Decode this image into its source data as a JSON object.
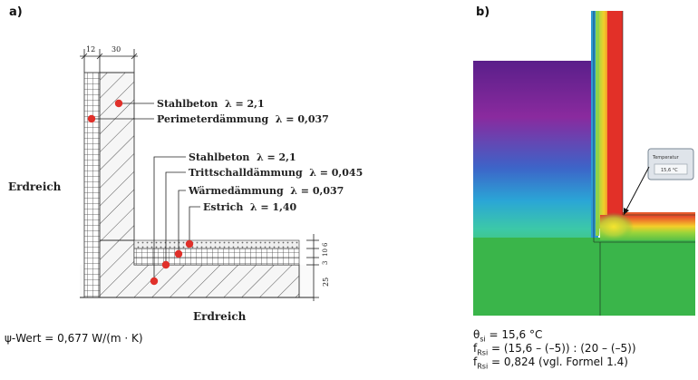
{
  "panel_a": {
    "label": "a)",
    "dim_wall_insulation": "12",
    "dim_wall_concrete": "30",
    "dim_floor_screed": "6",
    "dim_floor_insulation": "10",
    "dim_floor_impact": "3",
    "dim_slab": "25",
    "soil_label_left": "Erdreich",
    "soil_label_bottom": "Erdreich",
    "wall_labels": [
      {
        "name": "Stahlbeton",
        "lambda": "λ = 2,1"
      },
      {
        "name": "Perimeterdämmung",
        "lambda": "λ = 0,037"
      }
    ],
    "floor_labels": [
      {
        "name": "Stahlbeton",
        "lambda": "λ = 2,1"
      },
      {
        "name": "Trittschalldämmung",
        "lambda": "λ = 0,045"
      },
      {
        "name": "Wärmedämmung",
        "lambda": "λ = 0,037"
      },
      {
        "name": "Estrich",
        "lambda": "λ = 1,40"
      }
    ],
    "caption": "ψ-Wert = 0,677 W/(m · K)",
    "marker_color": "#e0302a"
  },
  "panel_b": {
    "label": "b)",
    "tooltip_title": "Temperatur",
    "tooltip_value": "15,6 °C",
    "caption_theta_symbol": "θ",
    "caption_theta_sub": "si",
    "caption_theta_value": " = 15,6 °C",
    "caption_f1_symbol": "f",
    "caption_f1_sub": "Rsi",
    "caption_f1_value": " = (15,6 – (–5)) : (20 – (–5))",
    "caption_f2_symbol": "f",
    "caption_f2_sub": "Rsi",
    "caption_f2_value": " = 0,824 (vgl. Formel 1.4)"
  }
}
